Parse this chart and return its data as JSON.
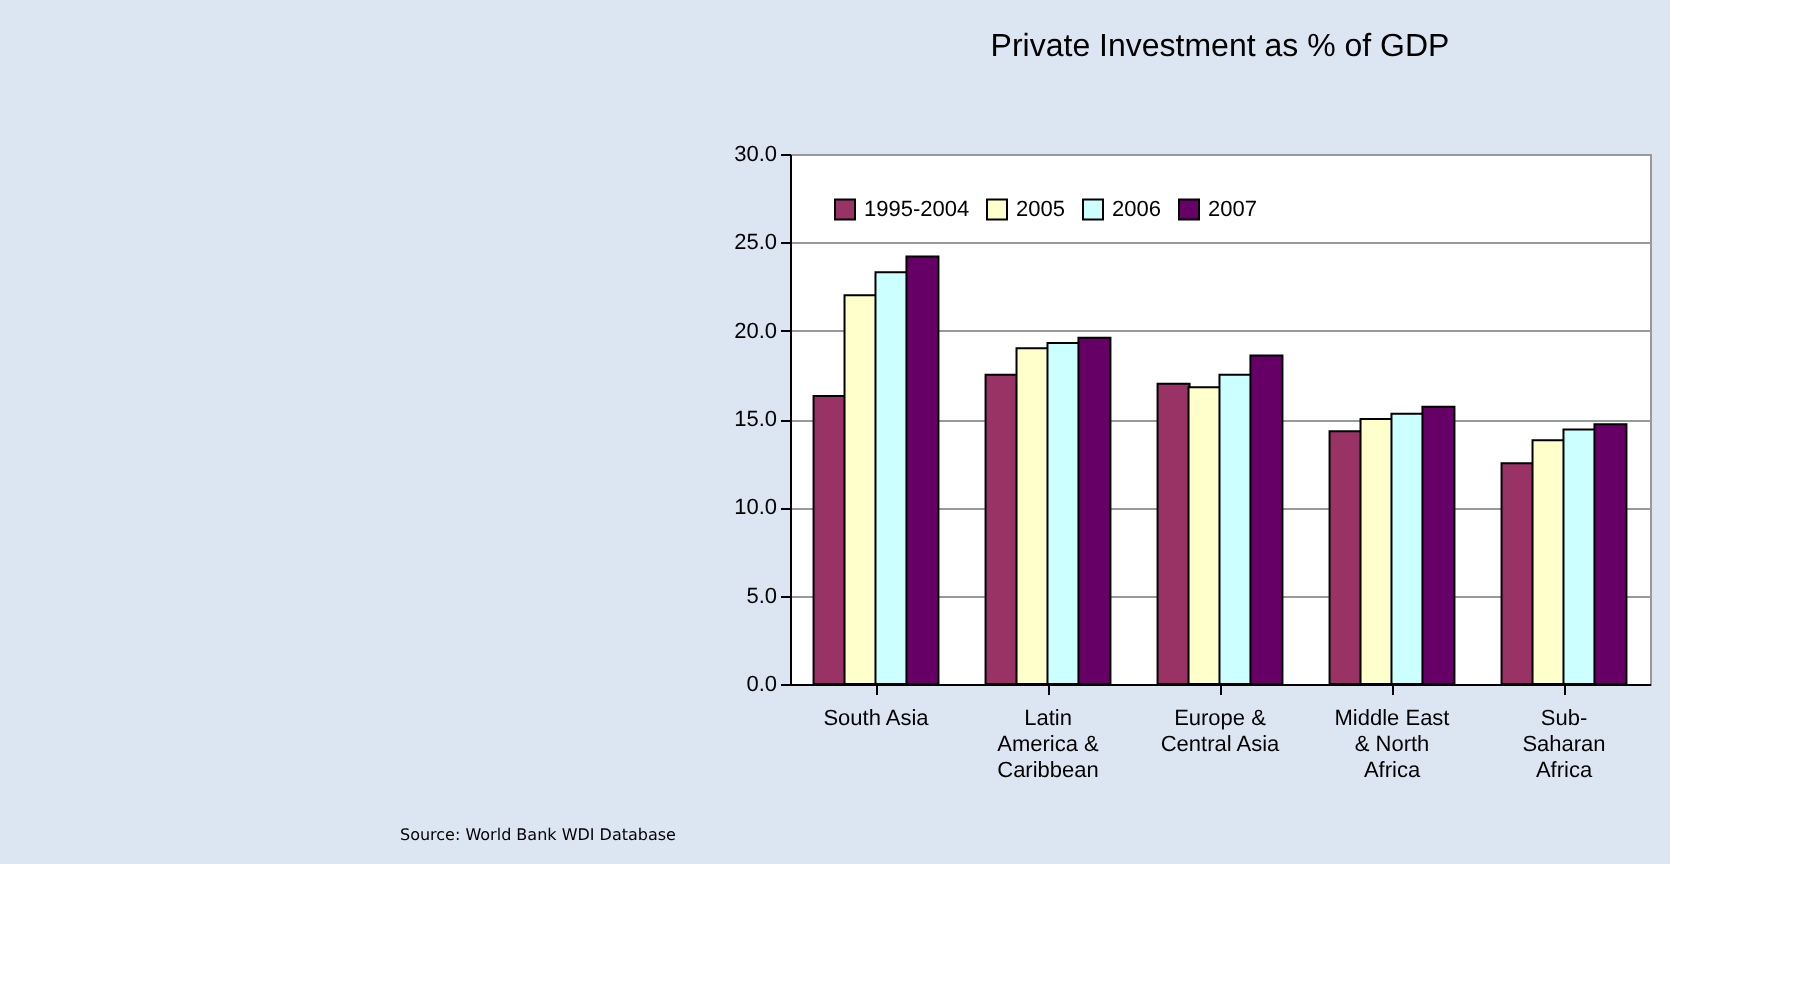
{
  "chart_data": {
    "type": "bar",
    "title": "Private Investment as % of GDP",
    "categories": [
      "South Asia",
      "Latin\nAmerica &\nCaribbean",
      "Europe &\nCentral Asia",
      "Middle East\n& North\nAfrica",
      "Sub-\nSaharan\nAfrica"
    ],
    "series": [
      {
        "name": "1995-2004",
        "color": "#993366",
        "values": [
          16.3,
          17.5,
          17.0,
          14.3,
          12.5
        ]
      },
      {
        "name": "2005",
        "color": "#ffffcc",
        "values": [
          22.0,
          19.0,
          16.8,
          15.0,
          13.8
        ]
      },
      {
        "name": "2006",
        "color": "#ccffff",
        "values": [
          23.3,
          19.3,
          17.5,
          15.3,
          14.4
        ]
      },
      {
        "name": "2007",
        "color": "#660066",
        "values": [
          24.2,
          19.6,
          18.6,
          15.7,
          14.7
        ]
      }
    ],
    "ylim": [
      0,
      30
    ],
    "yticks": [
      {
        "value": 0,
        "label": "0.0"
      },
      {
        "value": 5,
        "label": "5.0"
      },
      {
        "value": 10,
        "label": "10.0"
      },
      {
        "value": 15,
        "label": "15.0"
      },
      {
        "value": 20,
        "label": "20.0"
      },
      {
        "value": 25,
        "label": "25.0"
      },
      {
        "value": 30,
        "label": "30.0"
      }
    ],
    "grid": "y",
    "legend": "top left",
    "annotations": [
      "Source: World Bank WDI Database"
    ]
  }
}
